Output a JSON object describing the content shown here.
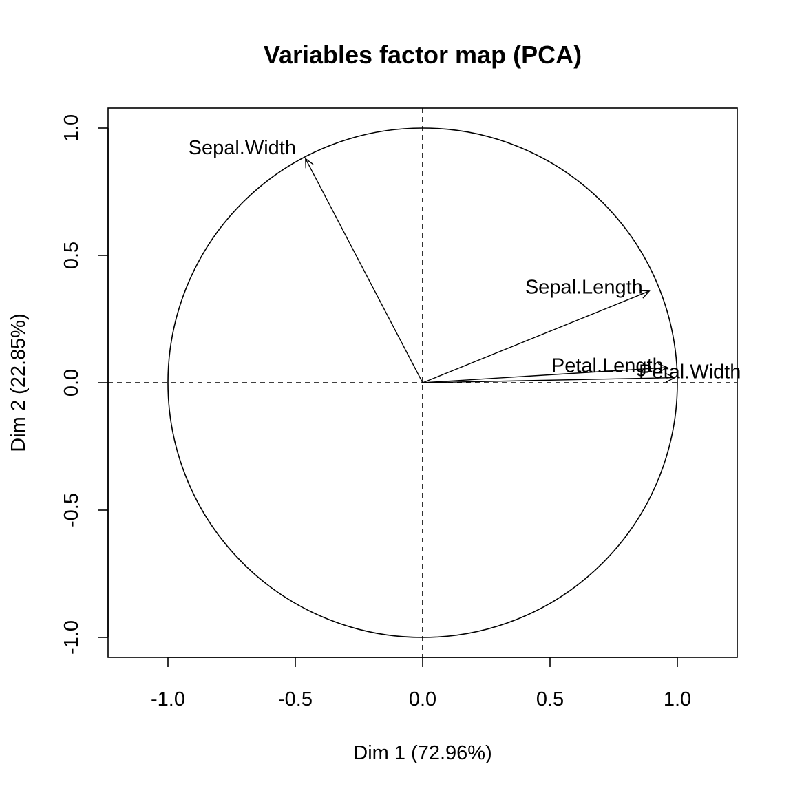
{
  "chart_data": {
    "type": "scatter",
    "subtype": "pca-variables-correlation-circle",
    "title": "Variables factor map (PCA)",
    "xlabel": "Dim 1 (72.96%)",
    "ylabel": "Dim 2 (22.85%)",
    "xlim": [
      -1.23,
      1.23
    ],
    "ylim": [
      -1.08,
      1.08
    ],
    "x_ticks": [
      -1.0,
      -0.5,
      0.0,
      0.5,
      1.0
    ],
    "x_tick_labels": [
      "-1.0",
      "-0.5",
      "0.0",
      "0.5",
      "1.0"
    ],
    "y_ticks": [
      -1.0,
      -0.5,
      0.0,
      0.5,
      1.0
    ],
    "y_tick_labels": [
      "-1.0",
      "-0.5",
      "0.0",
      "0.5",
      "1.0"
    ],
    "grid": false,
    "unit_circle_radius": 1.0,
    "reference_lines": [
      {
        "orientation": "horizontal",
        "value": 0.0,
        "style": "dashed"
      },
      {
        "orientation": "vertical",
        "value": 0.0,
        "style": "dashed"
      }
    ],
    "variables": [
      {
        "name": "Sepal.Length",
        "x": 0.89,
        "y": 0.36
      },
      {
        "name": "Sepal.Width",
        "x": -0.46,
        "y": 0.88
      },
      {
        "name": "Petal.Length",
        "x": 0.99,
        "y": 0.02
      },
      {
        "name": "Petal.Width",
        "x": 0.96,
        "y": 0.06
      }
    ],
    "colors": {
      "foreground": "#000000",
      "background": "#ffffff"
    }
  }
}
